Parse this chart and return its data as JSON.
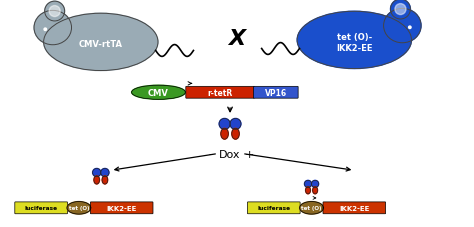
{
  "bg_color": "#ffffff",
  "mouse1_color": "#9aabb5",
  "mouse2_color": "#1a4fcc",
  "mouse1_label": "CMV-rtTA",
  "mouse2_label": "tet (O)-\nIKK2-EE",
  "cross_symbol": "X",
  "cmv_color": "#3a9922",
  "rtetr_color": "#cc2200",
  "vp16_color": "#3355cc",
  "cmv_label": "CMV",
  "rtetr_label": "r-tetR",
  "vp16_label": "VP16",
  "lucif_color": "#dddd22",
  "teto_color": "#886622",
  "ikk2_color": "#cc3300",
  "lucif_label": "luciferase",
  "teto_label": "tet (O)",
  "ikk2_label": "IKK2-EE",
  "dox_label": "Dox",
  "minus_label": "-",
  "plus_label": "+",
  "blue_protein": "#2244cc",
  "red_protein": "#cc2200"
}
